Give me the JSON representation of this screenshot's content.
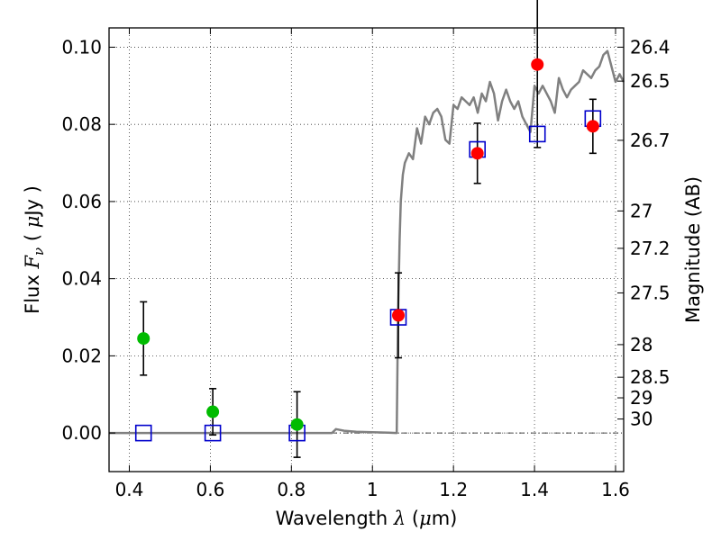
{
  "chart_data": {
    "type": "scatter",
    "title": "",
    "xlabel": {
      "prefix": "Wavelength  ",
      "sym": "λ",
      "unit_open": " (",
      "unit_mu": "μ",
      "unit_rest": "m)"
    },
    "ylabel": {
      "prefix": "Flux  ",
      "sym": "F",
      "sub": "ν",
      "mid": "  ( ",
      "mu": "μ",
      "rest": "Jy )"
    },
    "y2label": "Magnitude (AB)",
    "xlim": [
      0.35,
      1.62
    ],
    "ylim": [
      -0.01,
      0.105
    ],
    "grid": true,
    "x_ticks": [
      {
        "v": 0.4,
        "label": "0.4"
      },
      {
        "v": 0.6,
        "label": "0.6"
      },
      {
        "v": 0.8,
        "label": "0.8"
      },
      {
        "v": 1.0,
        "label": "1"
      },
      {
        "v": 1.2,
        "label": "1.2"
      },
      {
        "v": 1.4,
        "label": "1.4"
      },
      {
        "v": 1.6,
        "label": "1.6"
      }
    ],
    "y_ticks": [
      {
        "v": 0.0,
        "label": "0.00"
      },
      {
        "v": 0.02,
        "label": "0.02"
      },
      {
        "v": 0.04,
        "label": "0.04"
      },
      {
        "v": 0.06,
        "label": "0.06"
      },
      {
        "v": 0.08,
        "label": "0.08"
      },
      {
        "v": 0.1,
        "label": "0.10"
      }
    ],
    "y2_ticks": [
      {
        "mag": 26.4,
        "label": "26.4"
      },
      {
        "mag": 26.5,
        "label": "26.5"
      },
      {
        "mag": 26.7,
        "label": "26.7"
      },
      {
        "mag": 27.0,
        "label": "27"
      },
      {
        "mag": 27.2,
        "label": "27.2"
      },
      {
        "mag": 27.5,
        "label": "27.5"
      },
      {
        "mag": 28.0,
        "label": "28"
      },
      {
        "mag": 28.5,
        "label": "28.5"
      },
      {
        "mag": 29.0,
        "label": "29"
      },
      {
        "mag": 30.0,
        "label": "30"
      }
    ],
    "colors": {
      "detected": "#ff0000",
      "nondetected": "#00bb00",
      "model_flux": "#0000cc",
      "sed": "#808080",
      "errorbar": "#000000"
    },
    "series": [
      {
        "marker": "circle-green",
        "points": [
          {
            "x": 0.435,
            "y": 0.0245,
            "err": 0.0095
          },
          {
            "x": 0.606,
            "y": 0.0055,
            "err": 0.006
          },
          {
            "x": 0.814,
            "y": 0.0022,
            "err": 0.0085
          }
        ]
      },
      {
        "marker": "circle-red",
        "points": [
          {
            "x": 1.064,
            "y": 0.0305,
            "err": 0.011
          },
          {
            "x": 1.259,
            "y": 0.0725,
            "err": 0.0078
          },
          {
            "x": 1.407,
            "y": 0.0955,
            "err": 0.0215
          },
          {
            "x": 1.544,
            "y": 0.0795,
            "err": 0.007
          }
        ]
      },
      {
        "marker": "square-blue",
        "points": [
          {
            "x": 0.435,
            "y": 0.0
          },
          {
            "x": 0.606,
            "y": 0.0
          },
          {
            "x": 0.814,
            "y": 0.0
          },
          {
            "x": 1.064,
            "y": 0.03
          },
          {
            "x": 1.259,
            "y": 0.0735
          },
          {
            "x": 1.407,
            "y": 0.0775
          },
          {
            "x": 1.544,
            "y": 0.0815
          }
        ]
      },
      {
        "marker": "line-sed",
        "x": [
          0.35,
          0.9,
          0.91,
          0.93,
          0.96,
          1.0,
          1.04,
          1.06,
          1.063,
          1.067,
          1.07,
          1.075,
          1.08,
          1.09,
          1.1,
          1.11,
          1.12,
          1.13,
          1.14,
          1.15,
          1.16,
          1.17,
          1.18,
          1.19,
          1.2,
          1.21,
          1.22,
          1.23,
          1.24,
          1.25,
          1.26,
          1.27,
          1.28,
          1.29,
          1.3,
          1.31,
          1.32,
          1.33,
          1.34,
          1.35,
          1.36,
          1.37,
          1.38,
          1.39,
          1.4,
          1.41,
          1.42,
          1.43,
          1.44,
          1.45,
          1.46,
          1.47,
          1.48,
          1.49,
          1.5,
          1.51,
          1.52,
          1.53,
          1.54,
          1.55,
          1.56,
          1.57,
          1.58,
          1.59,
          1.6,
          1.61,
          1.62
        ],
        "y": [
          0.0,
          0.0,
          0.001,
          0.0006,
          0.0003,
          0.0002,
          0.0001,
          0.0,
          0.03,
          0.05,
          0.06,
          0.067,
          0.07,
          0.0725,
          0.071,
          0.079,
          0.075,
          0.082,
          0.08,
          0.083,
          0.084,
          0.082,
          0.076,
          0.075,
          0.085,
          0.084,
          0.087,
          0.086,
          0.085,
          0.087,
          0.083,
          0.088,
          0.086,
          0.091,
          0.088,
          0.081,
          0.086,
          0.089,
          0.086,
          0.084,
          0.086,
          0.082,
          0.08,
          0.078,
          0.09,
          0.088,
          0.09,
          0.088,
          0.086,
          0.083,
          0.092,
          0.089,
          0.087,
          0.089,
          0.09,
          0.091,
          0.094,
          0.093,
          0.092,
          0.094,
          0.095,
          0.098,
          0.099,
          0.095,
          0.091,
          0.093,
          0.091
        ]
      }
    ]
  }
}
